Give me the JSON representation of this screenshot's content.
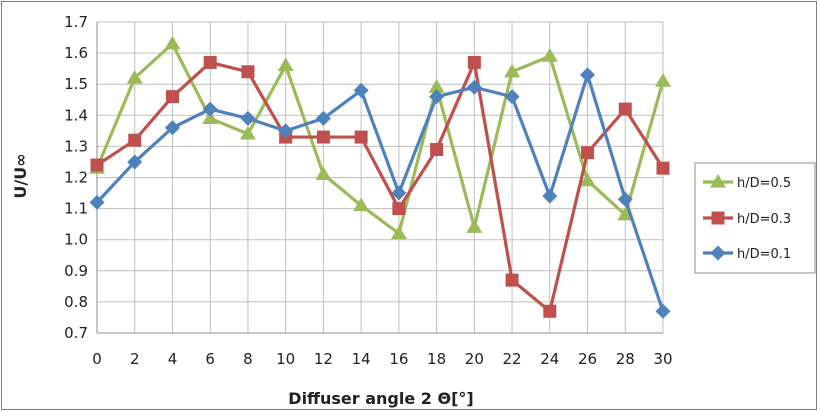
{
  "chart_data": {
    "type": "line",
    "title": "",
    "xlabel": "Diffuser angle 2 Θ[°]",
    "ylabel": "U/U∞",
    "x": [
      0,
      2,
      4,
      6,
      8,
      10,
      12,
      14,
      16,
      18,
      20,
      22,
      24,
      26,
      28,
      30
    ],
    "xlim": [
      0,
      30
    ],
    "ylim": [
      0.7,
      1.7
    ],
    "x_ticks": [
      "0",
      "2",
      "4",
      "6",
      "8",
      "10",
      "12",
      "14",
      "16",
      "18",
      "20",
      "22",
      "24",
      "26",
      "28",
      "30"
    ],
    "y_ticks": [
      "0.7",
      "0.8",
      "0.9",
      "1.0",
      "1.1",
      "1.2",
      "1.3",
      "1.4",
      "1.5",
      "1.6",
      "1.7"
    ],
    "grid": true,
    "legend_position": "right",
    "series": [
      {
        "name": "h/D=0.5",
        "color": "#9bbb59",
        "marker": "triangle",
        "values": [
          1.23,
          1.52,
          1.63,
          1.39,
          1.34,
          1.56,
          1.21,
          1.11,
          1.02,
          1.49,
          1.04,
          1.54,
          1.59,
          1.19,
          1.08,
          1.51
        ]
      },
      {
        "name": "h/D=0.3",
        "color": "#c0504d",
        "marker": "square",
        "values": [
          1.24,
          1.32,
          1.46,
          1.57,
          1.54,
          1.33,
          1.33,
          1.33,
          1.1,
          1.29,
          1.57,
          0.87,
          0.77,
          1.28,
          1.42,
          1.23
        ]
      },
      {
        "name": "h/D=0.1",
        "color": "#4f81bd",
        "marker": "diamond",
        "values": [
          1.12,
          1.25,
          1.36,
          1.42,
          1.39,
          1.35,
          1.39,
          1.48,
          1.15,
          1.46,
          1.49,
          1.46,
          1.14,
          1.53,
          1.13,
          0.77
        ]
      }
    ]
  }
}
